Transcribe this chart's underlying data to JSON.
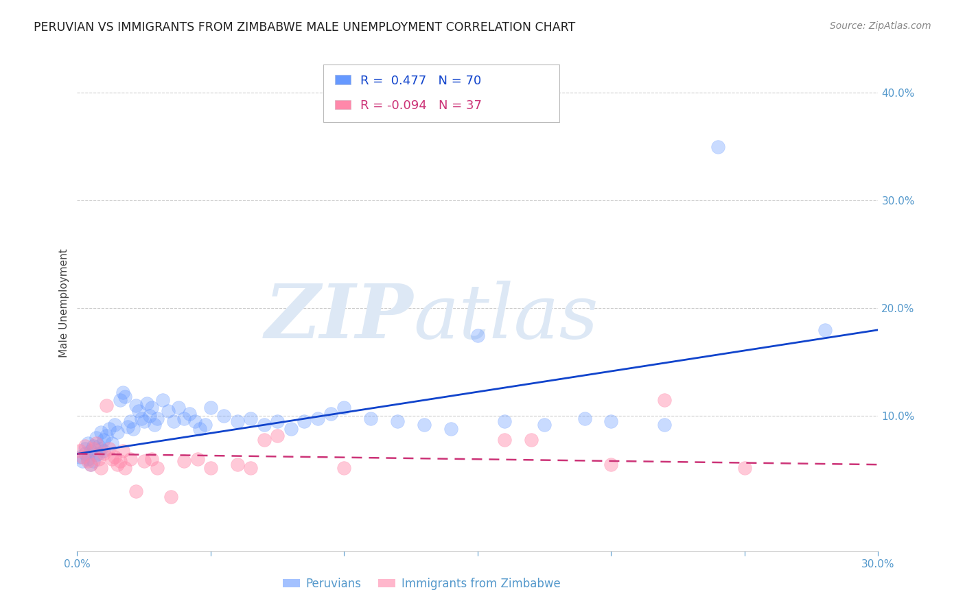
{
  "title": "PERUVIAN VS IMMIGRANTS FROM ZIMBABWE MALE UNEMPLOYMENT CORRELATION CHART",
  "source": "Source: ZipAtlas.com",
  "ylabel": "Male Unemployment",
  "x_min": 0.0,
  "x_max": 0.3,
  "y_min": -0.025,
  "y_max": 0.435,
  "y_ticks_right": [
    0.1,
    0.2,
    0.3,
    0.4
  ],
  "y_tick_labels_right": [
    "10.0%",
    "20.0%",
    "30.0%",
    "40.0%"
  ],
  "peruvian_color": "#6699ff",
  "zimbabwe_color": "#ff88aa",
  "peruvian_line_color": "#1144cc",
  "zimbabwe_line_color": "#cc3377",
  "background_color": "#ffffff",
  "grid_color": "#cccccc",
  "watermark_zip": "ZIP",
  "watermark_atlas": "atlas",
  "watermark_color": "#dde8f5",
  "legend_label_1": "Peruvians",
  "legend_label_2": "Immigrants from Zimbabwe",
  "peruvian_R": 0.477,
  "peruvian_N": 70,
  "zimbabwe_R": -0.094,
  "zimbabwe_N": 37,
  "peruvian_x": [
    0.001,
    0.002,
    0.003,
    0.003,
    0.004,
    0.004,
    0.005,
    0.005,
    0.006,
    0.006,
    0.007,
    0.007,
    0.008,
    0.008,
    0.009,
    0.009,
    0.01,
    0.01,
    0.011,
    0.012,
    0.013,
    0.014,
    0.015,
    0.016,
    0.017,
    0.018,
    0.019,
    0.02,
    0.021,
    0.022,
    0.023,
    0.024,
    0.025,
    0.026,
    0.027,
    0.028,
    0.029,
    0.03,
    0.032,
    0.034,
    0.036,
    0.038,
    0.04,
    0.042,
    0.044,
    0.046,
    0.048,
    0.05,
    0.055,
    0.06,
    0.065,
    0.07,
    0.075,
    0.08,
    0.085,
    0.09,
    0.095,
    0.1,
    0.11,
    0.12,
    0.13,
    0.14,
    0.15,
    0.16,
    0.175,
    0.19,
    0.2,
    0.22,
    0.24,
    0.28
  ],
  "peruvian_y": [
    0.062,
    0.058,
    0.065,
    0.07,
    0.06,
    0.075,
    0.055,
    0.068,
    0.072,
    0.058,
    0.064,
    0.08,
    0.072,
    0.065,
    0.085,
    0.07,
    0.078,
    0.068,
    0.082,
    0.088,
    0.075,
    0.092,
    0.085,
    0.115,
    0.122,
    0.118,
    0.09,
    0.095,
    0.088,
    0.11,
    0.105,
    0.098,
    0.095,
    0.112,
    0.1,
    0.108,
    0.092,
    0.098,
    0.115,
    0.105,
    0.095,
    0.108,
    0.098,
    0.102,
    0.095,
    0.088,
    0.092,
    0.108,
    0.1,
    0.095,
    0.098,
    0.092,
    0.095,
    0.088,
    0.095,
    0.098,
    0.102,
    0.108,
    0.098,
    0.095,
    0.092,
    0.088,
    0.175,
    0.095,
    0.092,
    0.098,
    0.095,
    0.092,
    0.35,
    0.18
  ],
  "zimbabwe_x": [
    0.001,
    0.002,
    0.003,
    0.004,
    0.005,
    0.006,
    0.007,
    0.008,
    0.009,
    0.01,
    0.011,
    0.012,
    0.013,
    0.014,
    0.015,
    0.016,
    0.017,
    0.018,
    0.02,
    0.022,
    0.025,
    0.028,
    0.03,
    0.035,
    0.04,
    0.045,
    0.05,
    0.06,
    0.065,
    0.07,
    0.075,
    0.1,
    0.16,
    0.17,
    0.2,
    0.22,
    0.25
  ],
  "zimbabwe_y": [
    0.068,
    0.062,
    0.072,
    0.058,
    0.055,
    0.07,
    0.075,
    0.06,
    0.052,
    0.065,
    0.11,
    0.07,
    0.06,
    0.062,
    0.055,
    0.058,
    0.068,
    0.052,
    0.06,
    0.03,
    0.058,
    0.06,
    0.052,
    0.025,
    0.058,
    0.06,
    0.052,
    0.055,
    0.052,
    0.078,
    0.082,
    0.052,
    0.078,
    0.078,
    0.055,
    0.115,
    0.052
  ]
}
